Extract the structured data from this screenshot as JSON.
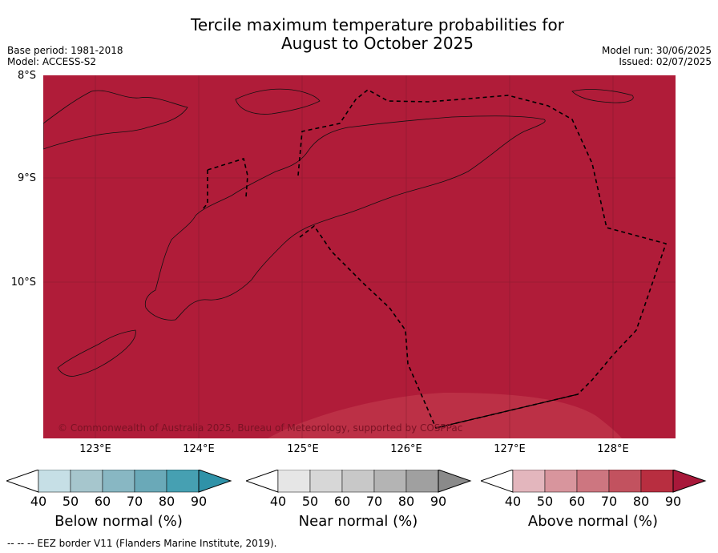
{
  "title_line1": "Tercile maximum temperature probabilities for",
  "title_line2": "August to October 2025",
  "base_period": "Base period: 1981-2018",
  "model": "Model: ACCESS-S2",
  "model_run": "Model run: 30/06/2025",
  "issued": "Issued: 02/07/2025",
  "lat_labels": [
    "8°S",
    "9°S",
    "10°S"
  ],
  "lon_labels": [
    "123°E",
    "124°E",
    "125°E",
    "126°E",
    "127°E",
    "128°E"
  ],
  "copyright": "© Commonwealth of Australia 2025, Bureau of Meteorology, supported by COSPPac",
  "colorbars": {
    "below": {
      "label": "Below normal (%)",
      "ticks": [
        "40",
        "50",
        "60",
        "70",
        "80",
        "90"
      ],
      "colors": [
        "#ffffff",
        "#c6dfe6",
        "#a6c6cd",
        "#88b7c3",
        "#6aa9b8",
        "#46a0b2",
        "#2f92a8"
      ]
    },
    "near": {
      "label": "Near normal (%)",
      "ticks": [
        "40",
        "50",
        "60",
        "70",
        "80",
        "90"
      ],
      "colors": [
        "#ffffff",
        "#e6e6e6",
        "#d7d7d7",
        "#c8c8c8",
        "#b4b4b4",
        "#a0a0a0",
        "#8a8a8a"
      ]
    },
    "above": {
      "label": "Above normal (%)",
      "ticks": [
        "40",
        "50",
        "60",
        "70",
        "80",
        "90"
      ],
      "colors": [
        "#ffffff",
        "#e3b6bd",
        "#d8959d",
        "#cd7680",
        "#c2525f",
        "#b82e40",
        "#a8183a"
      ]
    }
  },
  "map_colors": {
    "dominant": "#b01c39",
    "lighter": "#bc3046"
  },
  "footnote": "--  --  -- EEZ border V11 (Flanders Marine Institute, 2019)."
}
